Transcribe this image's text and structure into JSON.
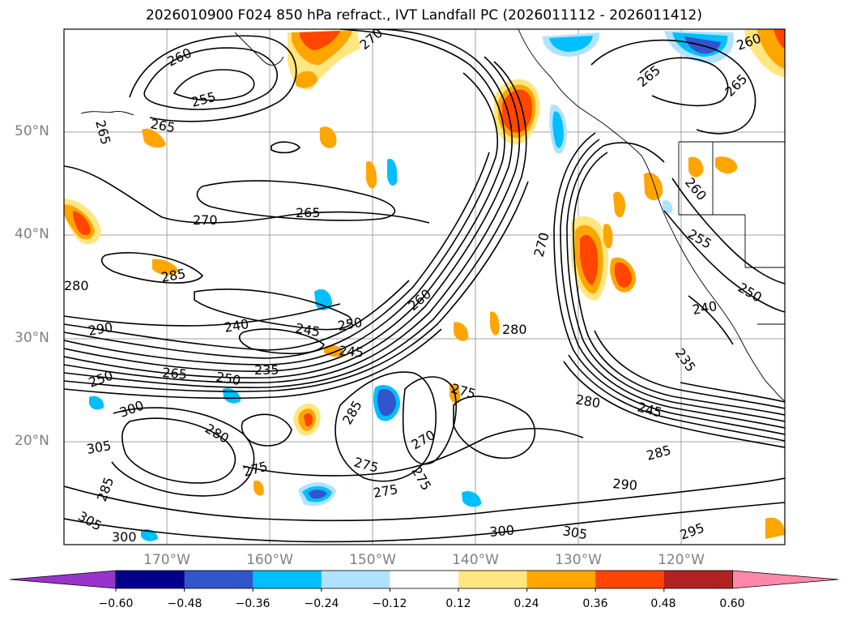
{
  "title": "2026010900 F024 850 hPa refract., IVT Landfall PC (2026011112 - 2026011412)",
  "lat_labels": [
    "50°N",
    "40°N",
    "30°N",
    "20°N"
  ],
  "lon_labels": [
    "170°W",
    "160°W",
    "150°W",
    "140°W",
    "130°W",
    "120°W"
  ],
  "colorbar": {
    "ticks": [
      "−0.60",
      "−0.48",
      "−0.36",
      "−0.24",
      "−0.12",
      "0.12",
      "0.24",
      "0.36",
      "0.48",
      "0.60"
    ],
    "colors": [
      "#9933cc",
      "#00008b",
      "#3355cc",
      "#00bfff",
      "#b0e2ff",
      "#ffffff",
      "#ffe680",
      "#ffa500",
      "#ff4500",
      "#b22222",
      "#ff88aa"
    ]
  },
  "contour_labels": [
    "260",
    "255",
    "265",
    "265",
    "270",
    "265",
    "260",
    "265",
    "270",
    "265",
    "260",
    "255",
    "250",
    "240",
    "235",
    "245",
    "250",
    "260",
    "270",
    "280",
    "280",
    "245",
    "275",
    "285",
    "270",
    "275",
    "275",
    "275",
    "280",
    "305",
    "300",
    "305",
    "300",
    "295",
    "290",
    "285",
    "265",
    "250",
    "300",
    "305",
    "280",
    "285",
    "285",
    "275",
    "240",
    "245",
    "250",
    "235",
    "290"
  ]
}
